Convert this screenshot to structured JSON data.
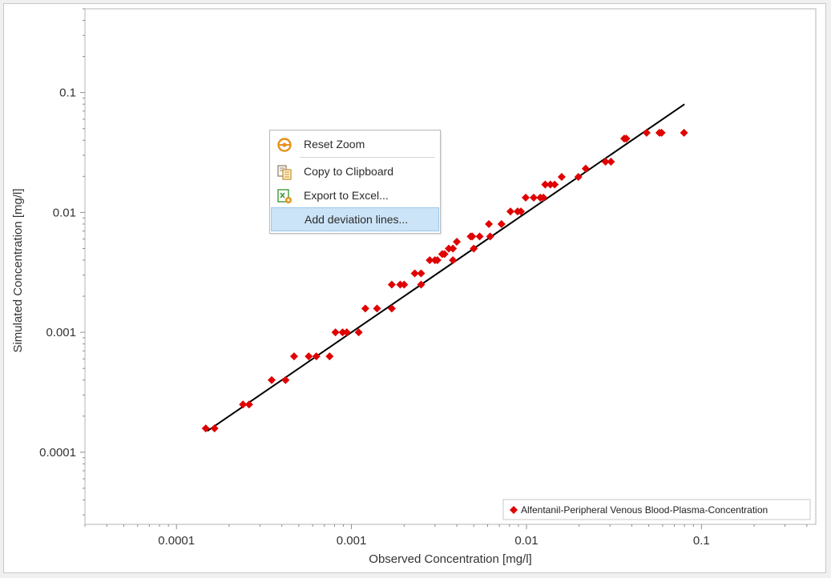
{
  "chart_data": {
    "type": "scatter",
    "x_scale": "log",
    "y_scale": "log",
    "xlabel": "Observed Concentration [mg/l]",
    "ylabel": "Simulated  Concentration [mg/l]",
    "xlim": [
      3e-05,
      0.45
    ],
    "ylim": [
      2.5e-05,
      0.5
    ],
    "x_tick_labels": [
      "0.0001",
      "0.001",
      "0.01",
      "0.1"
    ],
    "x_tick_values": [
      0.0001,
      0.001,
      0.01,
      0.1
    ],
    "y_tick_labels": [
      "0.0001",
      "0.001",
      "0.01",
      "0.1"
    ],
    "y_tick_values": [
      0.0001,
      0.001,
      0.01,
      0.1
    ],
    "grid": false,
    "legend_position": "bottom-right",
    "identity_line": {
      "from": 0.00015,
      "to": 0.08,
      "color": "#000000"
    },
    "series": [
      {
        "name": "Alfentanil-Peripheral  Venous  Blood-Plasma-Concentration",
        "color": "#e00000",
        "marker": "diamond",
        "x": [
          0.000147,
          0.000165,
          0.00024,
          0.00026,
          0.00035,
          0.00042,
          0.00047,
          0.00057,
          0.00063,
          0.00075,
          0.00081,
          0.00089,
          0.00094,
          0.0011,
          0.0012,
          0.0014,
          0.0017,
          0.0017,
          0.0019,
          0.002,
          0.0023,
          0.0025,
          0.0025,
          0.0028,
          0.003,
          0.0031,
          0.0033,
          0.0034,
          0.0036,
          0.0038,
          0.0038,
          0.004,
          0.0048,
          0.0049,
          0.005,
          0.0054,
          0.0061,
          0.0062,
          0.0072,
          0.0081,
          0.0089,
          0.0093,
          0.0099,
          0.011,
          0.012,
          0.0125,
          0.0128,
          0.0137,
          0.0145,
          0.0159,
          0.0198,
          0.0218,
          0.0283,
          0.0304,
          0.0362,
          0.0372,
          0.0486,
          0.0575,
          0.0592,
          0.0795
        ],
        "y": [
          0.000158,
          0.000158,
          0.00025,
          0.00025,
          0.0004,
          0.0004,
          0.00063,
          0.00063,
          0.00063,
          0.00063,
          0.001,
          0.001,
          0.001,
          0.001,
          0.00158,
          0.00158,
          0.00158,
          0.0025,
          0.0025,
          0.0025,
          0.0031,
          0.0025,
          0.0031,
          0.004,
          0.004,
          0.004,
          0.0045,
          0.0045,
          0.005,
          0.005,
          0.004,
          0.0057,
          0.0063,
          0.0063,
          0.005,
          0.0063,
          0.008,
          0.0063,
          0.008,
          0.0102,
          0.0102,
          0.0102,
          0.0133,
          0.0133,
          0.0133,
          0.0133,
          0.0171,
          0.0171,
          0.0171,
          0.0198,
          0.0198,
          0.0232,
          0.0265,
          0.0265,
          0.0413,
          0.0413,
          0.0462,
          0.0462,
          0.0462,
          0.0462
        ]
      }
    ]
  },
  "context_menu": {
    "items": [
      {
        "label": "Reset Zoom",
        "icon": "reset-zoom-icon"
      },
      {
        "label": "Copy to Clipboard",
        "icon": "clipboard-icon"
      },
      {
        "label": "Export to Excel...",
        "icon": "excel-export-icon"
      },
      {
        "label": "Add deviation lines...",
        "icon": ""
      }
    ]
  },
  "colors": {
    "marker": "#e00000",
    "line": "#000000",
    "hover": "#cce4f7",
    "icon_orange": "#e8901a",
    "icon_green": "#3f9a3a"
  }
}
